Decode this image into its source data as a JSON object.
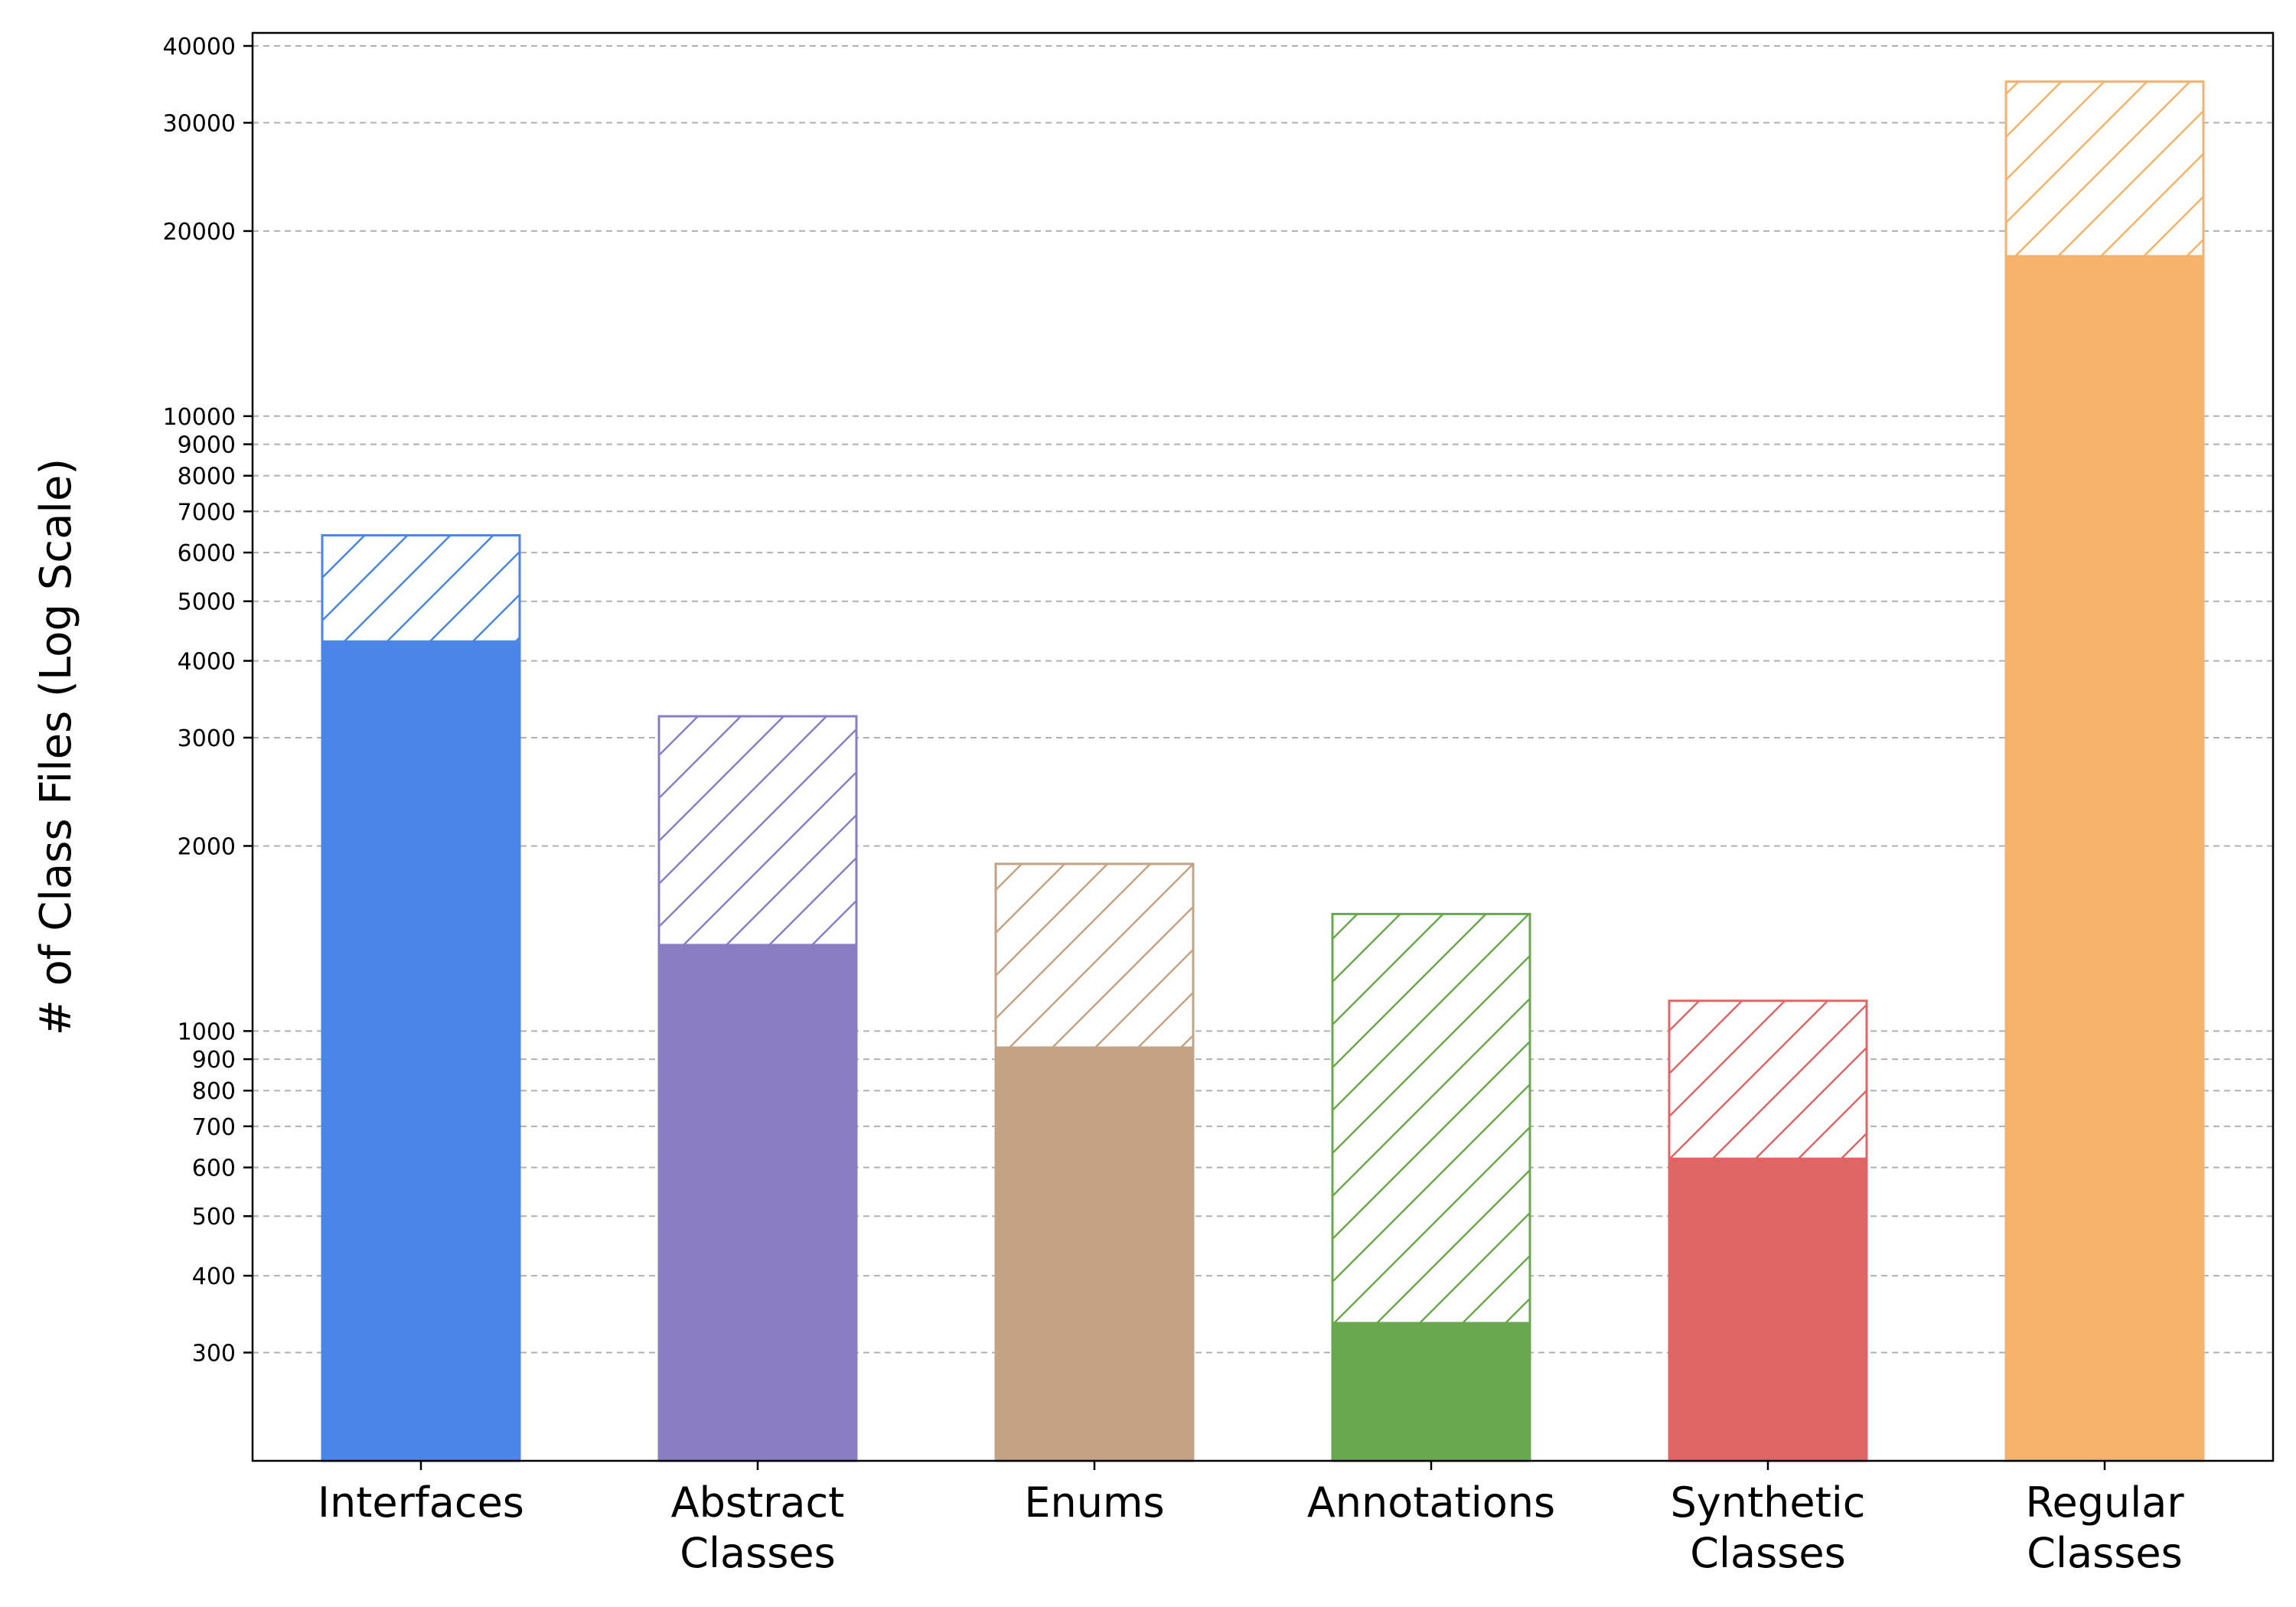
{
  "chart_data": {
    "type": "bar",
    "scale": "log",
    "ylabel": "# of Class Files (Log Scale)",
    "xlabel": "",
    "ylim": [
      200,
      42000
    ],
    "grid": "horizontal dashed",
    "yticks": [
      300,
      400,
      500,
      600,
      700,
      800,
      900,
      1000,
      2000,
      3000,
      4000,
      5000,
      6000,
      7000,
      8000,
      9000,
      10000,
      20000,
      30000,
      40000
    ],
    "categories": [
      [
        "Interfaces"
      ],
      [
        "Abstract",
        "Classes"
      ],
      [
        "Enums"
      ],
      [
        "Annotations"
      ],
      [
        "Synthetic",
        "Classes"
      ],
      [
        "Regular",
        "Classes"
      ]
    ],
    "series": [
      {
        "style": "solid",
        "values": [
          4300,
          1380,
          940,
          335,
          620,
          18200
        ]
      },
      {
        "style": "hatched",
        "values": [
          6400,
          3250,
          1870,
          1550,
          1120,
          35000
        ]
      }
    ],
    "colors": [
      "#4a86e8",
      "#8a7dc2",
      "#c4a283",
      "#6aa84f",
      "#e06666",
      "#f6b26b"
    ]
  }
}
